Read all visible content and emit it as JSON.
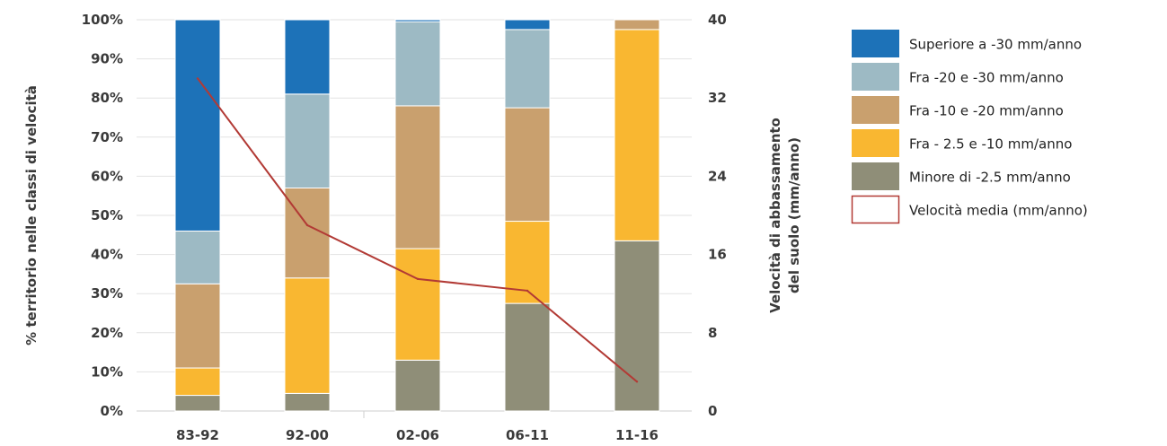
{
  "chart_data": {
    "type": "bar",
    "stacked": true,
    "categories": [
      "83-92",
      "92-00",
      "02-06",
      "06-11",
      "11-16"
    ],
    "series": [
      {
        "name": "Minore di -2.5 mm/anno",
        "color": "#8f8e78",
        "values": [
          4,
          4.5,
          13,
          27.5,
          43.5
        ]
      },
      {
        "name": "Fra - 2.5 e -10 mm/anno",
        "color": "#f9b731",
        "values": [
          7,
          29.5,
          28.5,
          21,
          54
        ]
      },
      {
        "name": "Fra -10 e -20 mm/anno",
        "color": "#c9a06e",
        "values": [
          21.5,
          23,
          36.5,
          29,
          2.5
        ]
      },
      {
        "name": "Fra -20 e -30 mm/anno",
        "color": "#9dbac4",
        "values": [
          13.5,
          24,
          21.5,
          20,
          0
        ]
      },
      {
        "name": "Superiore a -30 mm/anno",
        "color": "#1d72b8",
        "values": [
          54,
          19,
          0.5,
          2.5,
          0
        ]
      }
    ],
    "line": {
      "name": "Velocità media (mm/anno)",
      "color": "#b23a35",
      "axis": "right",
      "values": [
        34,
        19,
        13.5,
        12.3,
        3
      ]
    },
    "yticks_left": [
      "0%",
      "10%",
      "20%",
      "30%",
      "40%",
      "50%",
      "60%",
      "70%",
      "80%",
      "90%",
      "100%"
    ],
    "yticks_right": [
      "0",
      "8",
      "16",
      "24",
      "32",
      "40"
    ],
    "ylim_left": [
      0,
      100
    ],
    "ylim_right": [
      0,
      40
    ],
    "ylabel_left": "% territorio nelle classi di velocità",
    "ylabel_right_line1": "Velocità di abbassamento",
    "ylabel_right_line2": "del suolo (mm/anno)",
    "grid": true,
    "legend_position": "right"
  }
}
